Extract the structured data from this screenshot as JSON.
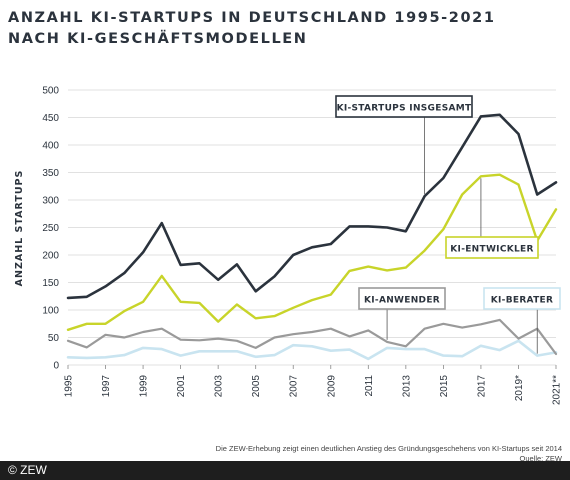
{
  "title_lines": [
    "ANZAHL KI-STARTUPS IN DEUTSCHLAND 1995-2021",
    "NACH KI-GESCHÄFTSMODELLEN"
  ],
  "caption": "Die ZEW-Erhebung zeigt einen deutlichen Anstieg des Gründungsgeschehens von KI-Startups seit 2014",
  "source": "Quelle: ZEW",
  "credit": "© ZEW",
  "colors": {
    "insgesamt": "#2b333d",
    "entwickler": "#c8d42a",
    "anwender": "#9a9a9a",
    "berater": "#c9e4f0",
    "grid": "#d7d7d7"
  },
  "chart_data": {
    "type": "line",
    "ylabel": "ANZAHL STARTUPS",
    "xlabel": "",
    "ylim": [
      0,
      500
    ],
    "yticks": [
      0,
      50,
      100,
      150,
      200,
      250,
      300,
      350,
      400,
      450,
      500
    ],
    "grid": true,
    "x": [
      "1995",
      "1996",
      "1997",
      "1998",
      "1999",
      "2000",
      "2001",
      "2002",
      "2003",
      "2004",
      "2005",
      "2006",
      "2007",
      "2008",
      "2009",
      "2010",
      "2011",
      "2012",
      "2013",
      "2014",
      "2015",
      "2016",
      "2017",
      "2018",
      "2019",
      "2020",
      "2021"
    ],
    "xtick_labels": [
      "1995",
      "",
      "1997",
      "",
      "1999",
      "",
      "2001",
      "",
      "2003",
      "",
      "2005",
      "",
      "2007",
      "",
      "2009",
      "",
      "2011",
      "",
      "2013",
      "",
      "2015",
      "",
      "2017",
      "",
      "2019*",
      "",
      "2021**"
    ],
    "series": [
      {
        "name": "KI-STARTUPS INSGESAMT",
        "key": "insgesamt",
        "values": [
          122,
          124,
          143,
          167,
          205,
          258,
          182,
          185,
          155,
          183,
          134,
          161,
          200,
          214,
          220,
          252,
          252,
          250,
          243,
          307,
          340,
          396,
          452,
          455,
          420,
          310,
          332
        ]
      },
      {
        "name": "KI-ENTWICKLER",
        "key": "entwickler",
        "values": [
          64,
          75,
          75,
          98,
          115,
          162,
          115,
          113,
          79,
          110,
          85,
          89,
          104,
          118,
          128,
          171,
          179,
          172,
          177,
          208,
          247,
          310,
          343,
          346,
          328,
          226,
          283
        ]
      },
      {
        "name": "KI-ANWENDER",
        "key": "anwender",
        "values": [
          44,
          32,
          55,
          50,
          60,
          66,
          46,
          45,
          48,
          44,
          31,
          50,
          56,
          60,
          66,
          52,
          63,
          42,
          34,
          66,
          75,
          68,
          74,
          82,
          48,
          66,
          20
        ]
      },
      {
        "name": "KI-BERATER",
        "key": "berater",
        "values": [
          14,
          13,
          14,
          18,
          31,
          29,
          17,
          25,
          25,
          25,
          15,
          18,
          36,
          34,
          26,
          28,
          11,
          31,
          29,
          29,
          17,
          16,
          35,
          27,
          44,
          17,
          23
        ]
      }
    ]
  }
}
